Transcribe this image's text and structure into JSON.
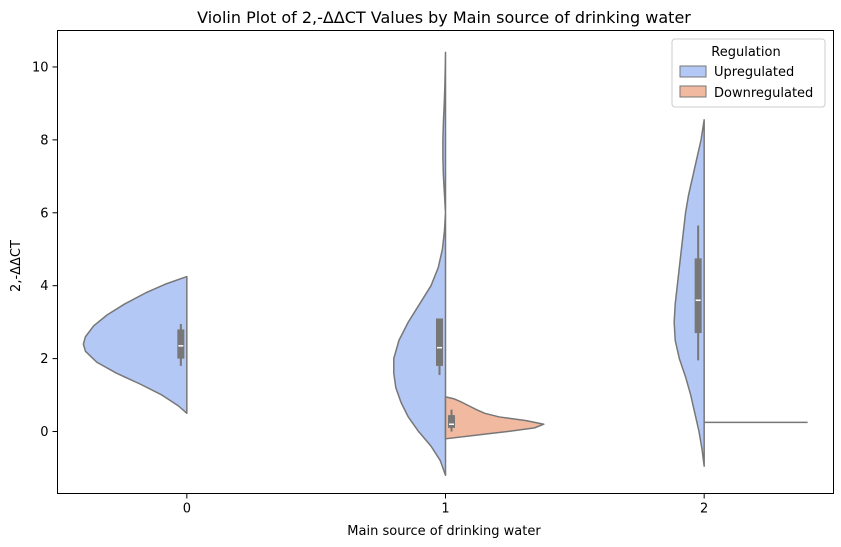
{
  "chart_data": {
    "type": "violin",
    "split": true,
    "title": "Violin Plot of 2,-ΔΔCT Values by Main source of drinking water",
    "xlabel": "Main source of drinking water",
    "ylabel": "2,-ΔΔCT",
    "categories": [
      "0",
      "1",
      "2"
    ],
    "ylim": [
      -1.7,
      11.0
    ],
    "yticks": [
      0,
      2,
      4,
      6,
      8,
      10
    ],
    "grid": false,
    "legend": {
      "title": "Regulation",
      "placement": "top-right",
      "entries": [
        "Upregulated",
        "Downregulated"
      ]
    },
    "series": [
      {
        "name": "Upregulated",
        "color": "#b3c8f5",
        "side": "left",
        "violins": [
          {
            "category": "0",
            "range": [
              0.5,
              4.25
            ],
            "median": 2.35,
            "q1": 2.0,
            "q3": 2.8,
            "whisker_low": 1.8,
            "whisker_high": 2.95,
            "density": [
              [
                0.5,
                0.0
              ],
              [
                0.7,
                0.08
              ],
              [
                1.0,
                0.24
              ],
              [
                1.3,
                0.45
              ],
              [
                1.6,
                0.68
              ],
              [
                1.9,
                0.87
              ],
              [
                2.2,
                0.98
              ],
              [
                2.4,
                1.0
              ],
              [
                2.6,
                0.98
              ],
              [
                2.9,
                0.9
              ],
              [
                3.2,
                0.77
              ],
              [
                3.5,
                0.6
              ],
              [
                3.8,
                0.4
              ],
              [
                4.05,
                0.2
              ],
              [
                4.25,
                0.0
              ]
            ]
          },
          {
            "category": "1",
            "range": [
              -1.2,
              10.4
            ],
            "median": 2.3,
            "q1": 1.8,
            "q3": 3.1,
            "whisker_low": 1.55,
            "whisker_high": 3.1,
            "density": [
              [
                -1.2,
                0.0
              ],
              [
                -0.8,
                0.05
              ],
              [
                -0.4,
                0.14
              ],
              [
                0.0,
                0.26
              ],
              [
                0.4,
                0.36
              ],
              [
                0.8,
                0.43
              ],
              [
                1.2,
                0.48
              ],
              [
                1.6,
                0.5
              ],
              [
                2.0,
                0.5
              ],
              [
                2.5,
                0.45
              ],
              [
                3.0,
                0.36
              ],
              [
                3.5,
                0.25
              ],
              [
                4.0,
                0.14
              ],
              [
                4.5,
                0.07
              ],
              [
                5.0,
                0.03
              ],
              [
                5.5,
                0.01
              ],
              [
                6.0,
                0.0
              ],
              [
                6.5,
                0.01
              ],
              [
                7.0,
                0.02
              ],
              [
                7.5,
                0.025
              ],
              [
                8.0,
                0.025
              ],
              [
                8.5,
                0.02
              ],
              [
                9.0,
                0.012
              ],
              [
                9.5,
                0.006
              ],
              [
                10.0,
                0.002
              ],
              [
                10.4,
                0.0
              ]
            ]
          },
          {
            "category": "2",
            "range": [
              -0.95,
              8.55
            ],
            "median": 3.6,
            "q1": 2.7,
            "q3": 4.75,
            "whisker_low": 1.95,
            "whisker_high": 5.65,
            "density": [
              [
                -0.95,
                0.0
              ],
              [
                -0.5,
                0.02
              ],
              [
                0.0,
                0.05
              ],
              [
                0.5,
                0.09
              ],
              [
                1.0,
                0.13
              ],
              [
                1.5,
                0.18
              ],
              [
                2.0,
                0.24
              ],
              [
                2.5,
                0.28
              ],
              [
                3.0,
                0.29
              ],
              [
                3.5,
                0.28
              ],
              [
                4.0,
                0.26
              ],
              [
                4.5,
                0.24
              ],
              [
                5.0,
                0.22
              ],
              [
                5.5,
                0.2
              ],
              [
                6.0,
                0.18
              ],
              [
                6.5,
                0.15
              ],
              [
                7.0,
                0.11
              ],
              [
                7.5,
                0.07
              ],
              [
                8.0,
                0.03
              ],
              [
                8.55,
                0.0
              ]
            ]
          }
        ]
      },
      {
        "name": "Downregulated",
        "color": "#f1b9a0",
        "side": "right",
        "violins": [
          {
            "category": "1",
            "range": [
              -0.2,
              0.95
            ],
            "median": 0.2,
            "q1": 0.1,
            "q3": 0.45,
            "whisker_low": 0.0,
            "whisker_high": 0.6,
            "density": [
              [
                -0.2,
                0.0
              ],
              [
                -0.1,
                0.3
              ],
              [
                0.0,
                0.6
              ],
              [
                0.1,
                0.86
              ],
              [
                0.2,
                0.95
              ],
              [
                0.3,
                0.78
              ],
              [
                0.4,
                0.52
              ],
              [
                0.5,
                0.38
              ],
              [
                0.6,
                0.3
              ],
              [
                0.7,
                0.23
              ],
              [
                0.8,
                0.16
              ],
              [
                0.9,
                0.08
              ],
              [
                0.95,
                0.0
              ]
            ]
          },
          {
            "category": "2",
            "range": [
              0.25,
              0.25
            ],
            "median": 0.25,
            "degenerate_line": true
          }
        ]
      }
    ]
  }
}
